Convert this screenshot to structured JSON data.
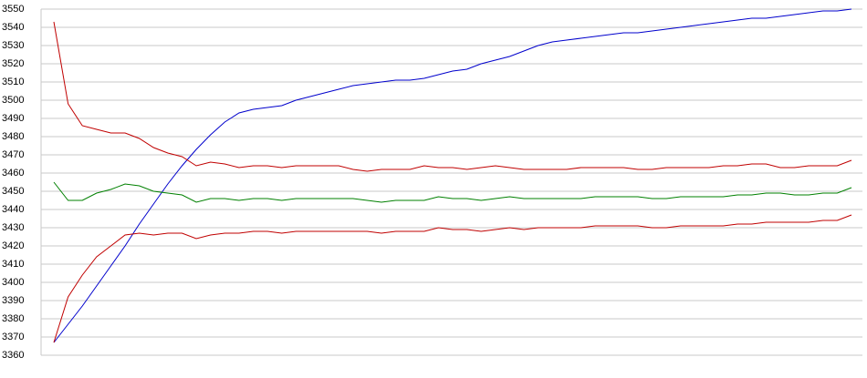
{
  "chart_data": {
    "type": "line",
    "ylim": [
      3360,
      3550
    ],
    "yticks": [
      3360,
      3370,
      3380,
      3390,
      3400,
      3410,
      3420,
      3430,
      3440,
      3450,
      3460,
      3470,
      3480,
      3490,
      3500,
      3510,
      3520,
      3530,
      3540,
      3550
    ],
    "grid": true,
    "series": [
      {
        "color": "#0000cc",
        "values": [
          3367,
          3377,
          3387,
          3398,
          3409,
          3420,
          3432,
          3443,
          3454,
          3464,
          3473,
          3481,
          3488,
          3493,
          3495,
          3496,
          3497,
          3500,
          3502,
          3504,
          3506,
          3508,
          3509,
          3510,
          3511,
          3511,
          3512,
          3514,
          3516,
          3517,
          3520,
          3522,
          3524,
          3527,
          3530,
          3532,
          3533,
          3534,
          3535,
          3536,
          3537,
          3537,
          3538,
          3539,
          3540,
          3541,
          3542,
          3543,
          3544,
          3545,
          3545,
          3546,
          3547,
          3548,
          3549,
          3549,
          3550
        ]
      },
      {
        "color": "#c00000",
        "values": [
          3543,
          3498,
          3486,
          3484,
          3482,
          3482,
          3479,
          3474,
          3471,
          3469,
          3464,
          3466,
          3465,
          3463,
          3464,
          3464,
          3463,
          3464,
          3464,
          3464,
          3464,
          3462,
          3461,
          3462,
          3462,
          3462,
          3464,
          3463,
          3463,
          3462,
          3463,
          3464,
          3463,
          3462,
          3462,
          3462,
          3462,
          3463,
          3463,
          3463,
          3463,
          3462,
          3462,
          3463,
          3463,
          3463,
          3463,
          3464,
          3464,
          3465,
          3465,
          3463,
          3463,
          3464,
          3464,
          3464,
          3467
        ]
      },
      {
        "color": "#008000",
        "values": [
          3455,
          3445,
          3445,
          3449,
          3451,
          3454,
          3453,
          3450,
          3449,
          3448,
          3444,
          3446,
          3446,
          3445,
          3446,
          3446,
          3445,
          3446,
          3446,
          3446,
          3446,
          3446,
          3445,
          3444,
          3445,
          3445,
          3445,
          3447,
          3446,
          3446,
          3445,
          3446,
          3447,
          3446,
          3446,
          3446,
          3446,
          3446,
          3447,
          3447,
          3447,
          3447,
          3446,
          3446,
          3447,
          3447,
          3447,
          3447,
          3448,
          3448,
          3449,
          3449,
          3448,
          3448,
          3449,
          3449,
          3452
        ]
      },
      {
        "color": "#c00000",
        "values": [
          3367,
          3392,
          3404,
          3414,
          3420,
          3426,
          3427,
          3426,
          3427,
          3427,
          3424,
          3426,
          3427,
          3427,
          3428,
          3428,
          3427,
          3428,
          3428,
          3428,
          3428,
          3428,
          3428,
          3427,
          3428,
          3428,
          3428,
          3430,
          3429,
          3429,
          3428,
          3429,
          3430,
          3429,
          3430,
          3430,
          3430,
          3430,
          3431,
          3431,
          3431,
          3431,
          3430,
          3430,
          3431,
          3431,
          3431,
          3431,
          3432,
          3432,
          3433,
          3433,
          3433,
          3433,
          3434,
          3434,
          3437
        ]
      }
    ]
  }
}
